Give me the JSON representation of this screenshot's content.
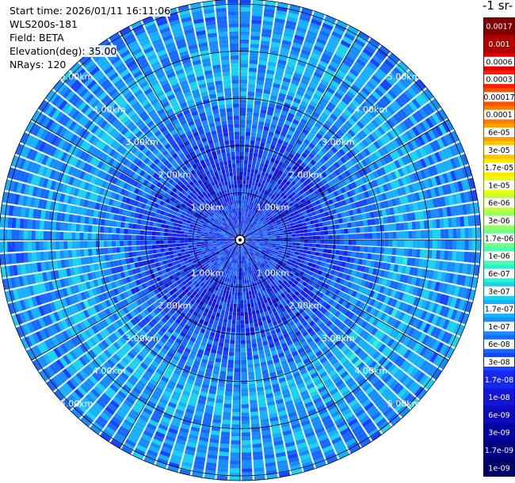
{
  "header": {
    "start_time": "Start time: 2026/01/11 16:11:06",
    "instrument": "WLS200s-181",
    "field": "Field: BETA",
    "elevation": "Elevation(deg): 35.00",
    "nrays": "NRays: 120"
  },
  "colorbar": {
    "title": "-1 sr-",
    "labels": [
      "0.0017",
      "0.001",
      "0.0006",
      "0.0003",
      "0.00017",
      "0.0001",
      "6e-05",
      "3e-05",
      "1.7e-05",
      "1e-05",
      "6e-06",
      "3e-06",
      "1.7e-06",
      "1e-06",
      "6e-07",
      "3e-07",
      "1.7e-07",
      "1e-07",
      "6e-08",
      "3e-08",
      "1.7e-08",
      "1e-08",
      "6e-09",
      "3e-09",
      "1.7e-09",
      "1e-09"
    ],
    "colors": [
      "#7f0000",
      "#b00000",
      "#e00000",
      "#ff2000",
      "#ff5000",
      "#ff7a00",
      "#ffa000",
      "#ffc400",
      "#ffe800",
      "#e8ff10",
      "#c0ff38",
      "#98ff60",
      "#70ff88",
      "#4cffac",
      "#2cf0d0",
      "#1ad2f0",
      "#16b0ff",
      "#168cff",
      "#1668ff",
      "#1644ff",
      "#1628f0",
      "#1414d8",
      "#0c0cbc",
      "#04049e",
      "#000080",
      "#000066"
    ]
  },
  "chart_data": {
    "type": "heatmap",
    "subtype": "polar PPI (plan position indicator)",
    "field": "BETA",
    "elevation_deg": 35.0,
    "n_rays": 120,
    "range_ring_labels": [
      "1.00km",
      "2.00km",
      "3.00km",
      "4.00km",
      "5.00km"
    ],
    "range_rings_km": [
      1,
      2,
      3,
      4,
      5
    ],
    "max_range_km": 5.1,
    "radial_spokes_deg": [
      0,
      30,
      60,
      90,
      120,
      150,
      180,
      210,
      240,
      270,
      300,
      330
    ],
    "color_scale": "log",
    "color_range": [
      1e-09,
      0.0017
    ],
    "radial_profile_estimate": [
      {
        "range_km": 0.5,
        "value": 3e-08
      },
      {
        "range_km": 1.5,
        "value": 2e-08
      },
      {
        "range_km": 2.5,
        "value": 6e-08
      },
      {
        "range_km": 3.5,
        "value": 1.7e-07
      },
      {
        "range_km": 4.5,
        "value": 1e-07
      }
    ]
  }
}
